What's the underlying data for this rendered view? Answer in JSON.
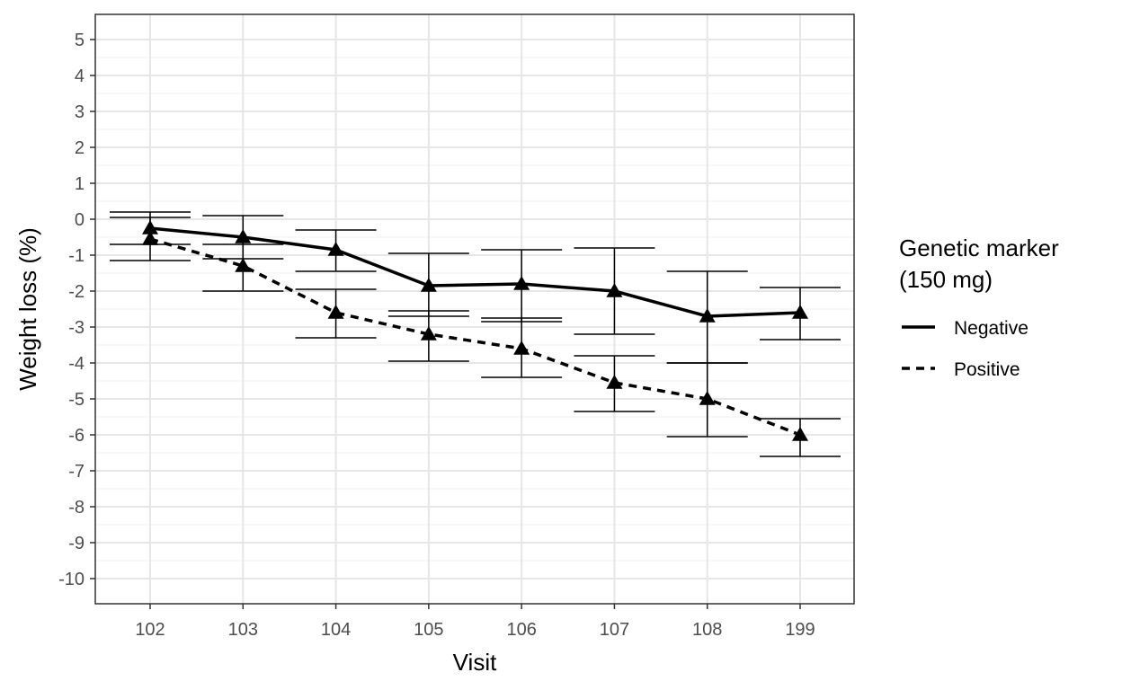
{
  "chart_data": {
    "type": "line",
    "xlabel": "Visit",
    "ylabel": "Weight loss (%)",
    "categories": [
      "102",
      "103",
      "104",
      "105",
      "106",
      "107",
      "108",
      "199"
    ],
    "ylim": [
      -10.7,
      5.7
    ],
    "yticks": [
      5,
      4,
      3,
      2,
      1,
      0,
      -1,
      -2,
      -3,
      -4,
      -5,
      -6,
      -7,
      -8,
      -9,
      -10
    ],
    "grid": true,
    "legend": {
      "title_line1": "Genetic marker",
      "title_line2": "(150 mg)",
      "placement": "right"
    },
    "marker": "triangle",
    "series": [
      {
        "name": "Negative",
        "line_style": "solid",
        "values": [
          -0.25,
          -0.5,
          -0.85,
          -1.85,
          -1.8,
          -2.0,
          -2.7,
          -2.6
        ],
        "lower": [
          -0.7,
          -1.1,
          -1.45,
          -2.7,
          -2.85,
          -3.2,
          -4.0,
          -3.35
        ],
        "upper": [
          0.2,
          0.1,
          -0.3,
          -0.95,
          -0.85,
          -0.8,
          -1.45,
          -1.9
        ]
      },
      {
        "name": "Positive",
        "line_style": "dashed",
        "values": [
          -0.55,
          -1.3,
          -2.6,
          -3.2,
          -3.6,
          -4.55,
          -5.0,
          -6.0
        ],
        "lower": [
          -1.15,
          -2.0,
          -3.3,
          -3.95,
          -4.4,
          -5.35,
          -6.05,
          -6.6
        ],
        "upper": [
          0.05,
          -0.7,
          -1.95,
          -2.55,
          -2.75,
          -3.8,
          -4.0,
          -5.55
        ]
      }
    ]
  }
}
